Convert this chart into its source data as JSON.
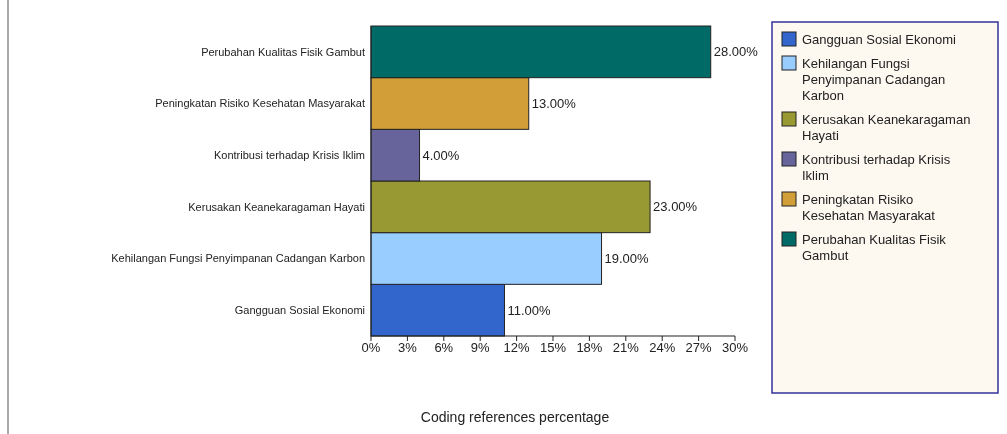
{
  "chart_data": {
    "type": "bar",
    "orientation": "horizontal",
    "xlabel": "Coding references percentage",
    "categories": [
      "Perubahan Kualitas Fisik Gambut",
      "Peningkatan Risiko Kesehatan Masyarakat",
      "Kontribusi terhadap Krisis Iklim",
      "Kerusakan Keanekaragaman Hayati",
      "Kehilangan Fungsi Penyimpanan Cadangan Karbon",
      "Gangguan Sosial Ekonomi"
    ],
    "series": [
      {
        "name": "Gangguan Sosial Ekonomi",
        "color": "#3366cc",
        "values": [
          null,
          null,
          null,
          null,
          null,
          11
        ],
        "value_labels": [
          null,
          null,
          null,
          null,
          null,
          "11.00%"
        ]
      },
      {
        "name": "Kehilangan Fungsi Penyimpanan Cadangan Karbon",
        "color": "#99ccff",
        "values": [
          null,
          null,
          null,
          null,
          19,
          null
        ],
        "value_labels": [
          null,
          null,
          null,
          null,
          "19.00%",
          null
        ]
      },
      {
        "name": "Kerusakan Keanekaragaman Hayati",
        "color": "#999933",
        "values": [
          null,
          null,
          null,
          23,
          null,
          null
        ],
        "value_labels": [
          null,
          null,
          null,
          "23.00%",
          null,
          null
        ]
      },
      {
        "name": "Kontribusi terhadap Krisis Iklim",
        "color": "#66649a",
        "values": [
          null,
          null,
          4,
          null,
          null,
          null
        ],
        "value_labels": [
          null,
          null,
          "4.00%",
          null,
          null,
          null
        ]
      },
      {
        "name": "Peningkatan Risiko Kesehatan Masyarakat",
        "color": "#d19e38",
        "values": [
          null,
          13,
          null,
          null,
          null,
          null
        ],
        "value_labels": [
          null,
          "13.00%",
          null,
          null,
          null,
          null
        ]
      },
      {
        "name": "Perubahan Kualitas Fisik Gambut",
        "color": "#006b66",
        "values": [
          28,
          null,
          null,
          null,
          null,
          null
        ],
        "value_labels": [
          "28.00%",
          null,
          null,
          null,
          null,
          null
        ]
      }
    ],
    "xlim": [
      0,
      30
    ],
    "xticks": [
      {
        "value": 0,
        "label": "0%"
      },
      {
        "value": 3,
        "label": "3%"
      },
      {
        "value": 6,
        "label": "6%"
      },
      {
        "value": 9,
        "label": "9%"
      },
      {
        "value": 12,
        "label": "12%"
      },
      {
        "value": 15,
        "label": "15%"
      },
      {
        "value": 18,
        "label": "18%"
      },
      {
        "value": 21,
        "label": "21%"
      },
      {
        "value": 24,
        "label": "24%"
      },
      {
        "value": 27,
        "label": "27%"
      },
      {
        "value": 30,
        "label": "30%"
      }
    ],
    "grid": false,
    "legend": "right"
  }
}
